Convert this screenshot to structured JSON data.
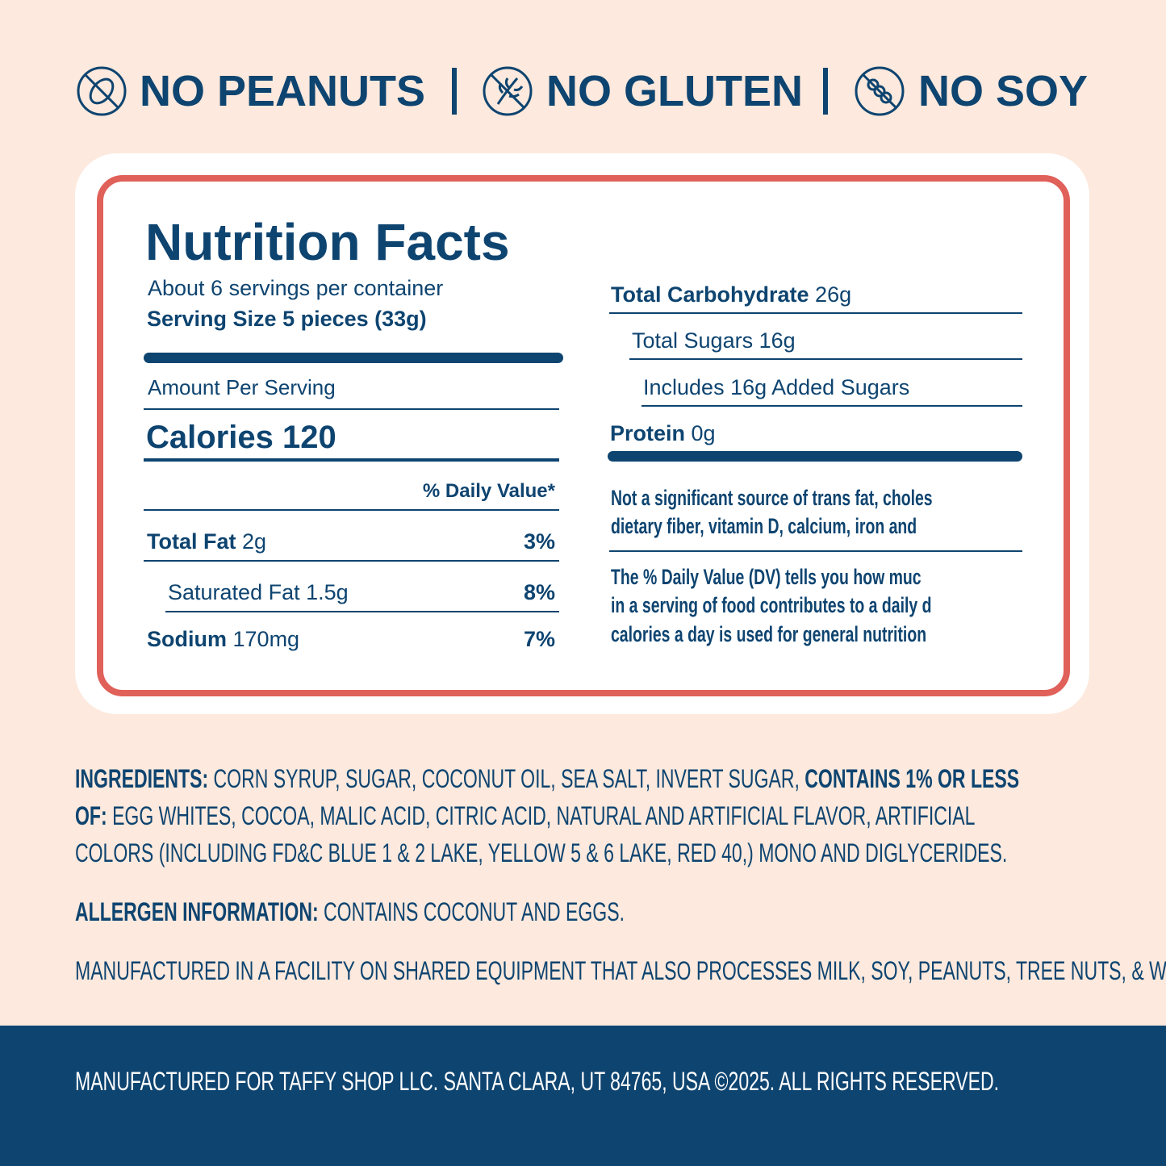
{
  "badges": [
    {
      "label": "NO PEANUTS"
    },
    {
      "label": "NO GLUTEN"
    },
    {
      "label": "NO SOY"
    }
  ],
  "nutrition": {
    "title": "Nutrition Facts",
    "servings": "About 6 servings per container",
    "serving_size": "Serving Size 5 pieces (33g)",
    "amount_per_serving": "Amount Per Serving",
    "calories": "Calories 120",
    "daily_value_header": "% Daily Value*",
    "left_rows": [
      {
        "name": "Total Fat",
        "amount": "2g",
        "dv": "3%"
      },
      {
        "name": "Saturated Fat 1.5g",
        "dv": "8%"
      },
      {
        "name": "Sodium",
        "amount": "170mg",
        "dv": "7%"
      }
    ],
    "right_rows": [
      {
        "name": "Total Carbohydrate",
        "amount": "26g"
      },
      {
        "name": "Total Sugars 16g"
      },
      {
        "name": "Includes 16g Added Sugars"
      },
      {
        "name": "Protein",
        "amount": "0g"
      }
    ],
    "note_lines": [
      "Not a significant source of trans fat, choles",
      "dietary fiber, vitamin D, calcium, iron and"
    ],
    "dv_note_lines": [
      "The % Daily Value (DV) tells you how muc",
      "in a serving of food contributes to a daily d",
      "calories a day is used for general nutrition"
    ]
  },
  "ingredients": {
    "label": "INGREDIENTS:",
    "text": "CORN SYRUP, SUGAR, COCONUT OIL, SEA SALT, INVERT SUGAR,",
    "label2": "CONTAINS 1% OR LESS OF:",
    "text2": "EGG WHITES, COCOA, MALIC ACID, CITRIC ACID, NATURAL AND ARTIFICIAL FLAVOR, ARTIFICIAL COLORS (INCLUDING FD&C BLUE 1 & 2 LAKE, YELLOW 5 & 6 LAKE, RED 40,) MONO AND DIGLYCERIDES."
  },
  "allergen": {
    "label": "ALLERGEN INFORMATION:",
    "text": "CONTAINS COCONUT AND EGGS."
  },
  "facility": "MANUFACTURED IN A FACILITY ON SHARED EQUIPMENT THAT ALSO PROCESSES MILK, SOY, PEANUTS, TREE NUTS, & WHEAT.",
  "footer": "MANUFACTURED FOR TAFFY SHOP LLC. SANTA CLARA, UT 84765, USA ©2025. ALL RIGHTS RESERVED."
}
